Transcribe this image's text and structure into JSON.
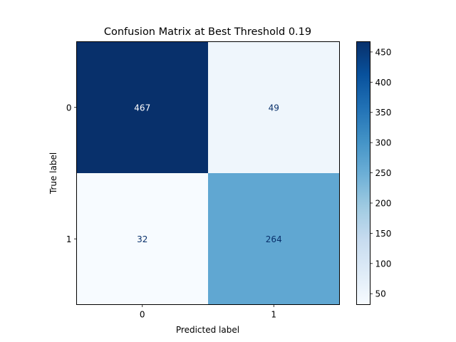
{
  "chart_data": {
    "type": "heatmap",
    "title": "Confusion Matrix at Best Threshold 0.19",
    "xlabel": "Predicted label",
    "ylabel": "True label",
    "x_categories": [
      "0",
      "1"
    ],
    "y_categories": [
      "0",
      "1"
    ],
    "values": [
      [
        467,
        49
      ],
      [
        32,
        264
      ]
    ],
    "colormap": "Blues",
    "color_range": [
      32,
      467
    ],
    "colorbar_ticks": [
      50,
      100,
      150,
      200,
      250,
      300,
      350,
      400,
      450
    ],
    "grid": false
  }
}
